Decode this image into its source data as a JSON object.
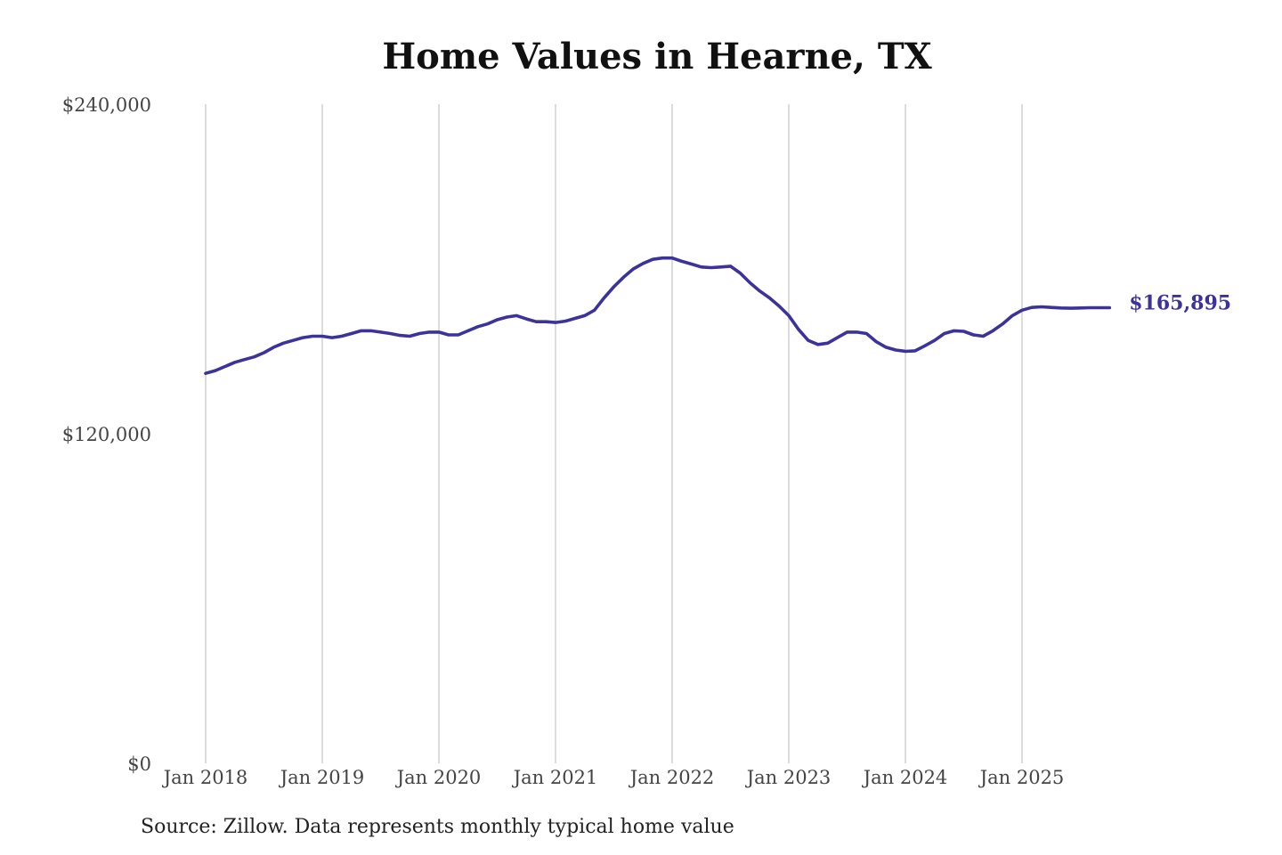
{
  "chart_data": {
    "type": "line",
    "title": "Home Values in Hearne, TX",
    "xlabel": "",
    "ylabel": "",
    "ylim": [
      0,
      240000
    ],
    "y_ticks": [
      "$240,000",
      "$120,000",
      "$0"
    ],
    "y_tick_values": [
      240000,
      120000,
      0
    ],
    "x_ticks": [
      "Jan 2018",
      "Jan 2019",
      "Jan 2020",
      "Jan 2021",
      "Jan 2022",
      "Jan 2023",
      "Jan 2024",
      "Jan 2025"
    ],
    "x_tick_dates": [
      "2018-01",
      "2019-01",
      "2020-01",
      "2021-01",
      "2022-01",
      "2023-01",
      "2024-01",
      "2025-01"
    ],
    "grid": "vertical",
    "end_label": "$165,895",
    "line_color": "#3b329c",
    "series": [
      {
        "x": [
          "2018-01",
          "2018-02",
          "2018-03",
          "2018-04",
          "2018-05",
          "2018-06",
          "2018-07",
          "2018-08",
          "2018-09",
          "2018-10",
          "2018-11",
          "2018-12",
          "2019-01",
          "2019-02",
          "2019-03",
          "2019-04",
          "2019-05",
          "2019-06",
          "2019-07",
          "2019-08",
          "2019-09",
          "2019-10",
          "2019-11",
          "2019-12",
          "2020-01",
          "2020-02",
          "2020-03",
          "2020-04",
          "2020-05",
          "2020-06",
          "2020-07",
          "2020-08",
          "2020-09",
          "2020-10",
          "2020-11",
          "2020-12",
          "2021-01",
          "2021-02",
          "2021-03",
          "2021-04",
          "2021-05",
          "2021-06",
          "2021-07",
          "2021-08",
          "2021-09",
          "2021-10",
          "2021-11",
          "2021-12",
          "2022-01",
          "2022-02",
          "2022-03",
          "2022-04",
          "2022-05",
          "2022-06",
          "2022-07",
          "2022-08",
          "2022-09",
          "2022-10",
          "2022-11",
          "2022-12",
          "2023-01",
          "2023-02",
          "2023-03",
          "2023-04",
          "2023-05",
          "2023-06",
          "2023-07",
          "2023-08",
          "2023-09",
          "2023-10",
          "2023-11",
          "2023-12",
          "2024-01",
          "2024-02",
          "2024-03",
          "2024-04",
          "2024-05",
          "2024-06",
          "2024-07",
          "2024-08",
          "2024-09",
          "2024-10",
          "2024-11",
          "2024-12",
          "2025-01",
          "2025-02",
          "2025-03",
          "2025-04",
          "2025-05",
          "2025-06",
          "2025-07",
          "2025-08",
          "2025-09",
          "2025-10"
        ],
        "values": [
          142000,
          143000,
          144500,
          146000,
          147000,
          148000,
          149500,
          151500,
          153000,
          154000,
          155000,
          155500,
          155500,
          155000,
          155500,
          156500,
          157500,
          157500,
          157000,
          156500,
          155800,
          155500,
          156500,
          157000,
          157000,
          156000,
          156000,
          157500,
          159000,
          160000,
          161500,
          162500,
          163000,
          161800,
          160800,
          160800,
          160500,
          161000,
          162000,
          163000,
          165000,
          169500,
          173500,
          177000,
          180000,
          182000,
          183500,
          184000,
          184000,
          182800,
          181800,
          180700,
          180500,
          180700,
          181000,
          178500,
          175000,
          172000,
          169500,
          166500,
          163000,
          158000,
          154000,
          152500,
          153000,
          155000,
          157000,
          157000,
          156500,
          153500,
          151500,
          150500,
          150000,
          150200,
          152000,
          154000,
          156500,
          157500,
          157300,
          156000,
          155500,
          157500,
          160000,
          163000,
          165000,
          166000,
          166200,
          166000,
          165800,
          165700,
          165800,
          165900,
          165900,
          165895
        ]
      }
    ]
  },
  "footer": {
    "source": "Source: Zillow. Data represents monthly typical home value"
  }
}
